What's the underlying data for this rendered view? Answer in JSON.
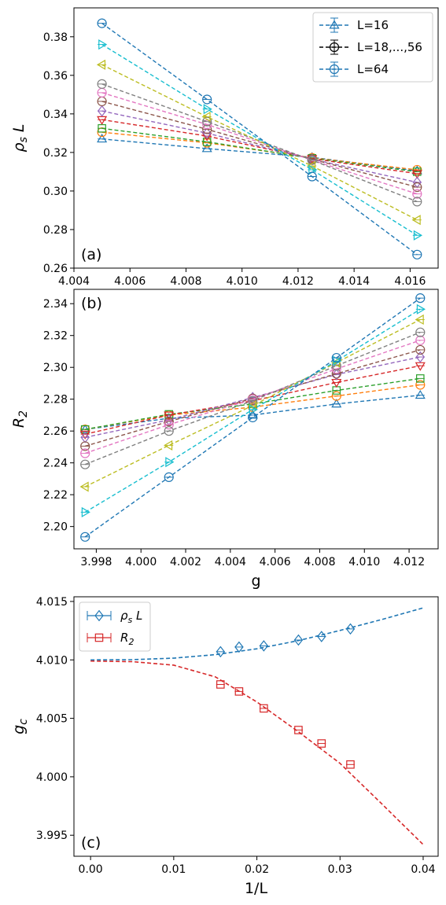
{
  "chart_data": [
    {
      "type": "line",
      "panel_label": "(a)",
      "xlabel": "",
      "ylabel": "ρ_s L",
      "xlim": [
        4.004,
        4.017
      ],
      "ylim": [
        0.26,
        0.395
      ],
      "xticks": [
        4.004,
        4.006,
        4.008,
        4.01,
        4.012,
        4.014,
        4.016
      ],
      "xtick_labels": [
        "4.004",
        "4.006",
        "4.008",
        "4.010",
        "4.012",
        "4.014",
        "4.016"
      ],
      "yticks": [
        0.26,
        0.28,
        0.3,
        0.32,
        0.34,
        0.36,
        0.38
      ],
      "ytick_labels": [
        "0.26",
        "0.28",
        "0.30",
        "0.32",
        "0.34",
        "0.36",
        "0.38"
      ],
      "legend_position": "top-right",
      "legend": [
        {
          "label": "L=16",
          "color": "#1f77b4",
          "marker": "triangle-up"
        },
        {
          "label": "L=18,...,56",
          "color": "#000000",
          "marker": "circle"
        },
        {
          "label": "L=64",
          "color": "#1f77b4",
          "marker": "circle"
        }
      ],
      "x": [
        4.005,
        4.00875,
        4.0125,
        4.01625
      ],
      "series": [
        {
          "color": "#1f77b4",
          "marker": "triangle-up",
          "values": [
            0.327,
            0.322,
            0.3175,
            0.3105
          ]
        },
        {
          "color": "#ff7f0e",
          "marker": "circle",
          "values": [
            0.3305,
            0.325,
            0.3172,
            0.311
          ]
        },
        {
          "color": "#2ca02c",
          "marker": "square",
          "values": [
            0.3325,
            0.3255,
            0.317,
            0.31
          ]
        },
        {
          "color": "#d62728",
          "marker": "triangle-down",
          "values": [
            0.337,
            0.3285,
            0.3168,
            0.309
          ]
        },
        {
          "color": "#9467bd",
          "marker": "diamond",
          "values": [
            0.3415,
            0.33,
            0.3165,
            0.3045
          ]
        },
        {
          "color": "#8c564b",
          "marker": "circle",
          "values": [
            0.3465,
            0.332,
            0.3165,
            0.302
          ]
        },
        {
          "color": "#e377c2",
          "marker": "circle",
          "values": [
            0.351,
            0.3345,
            0.316,
            0.2985
          ]
        },
        {
          "color": "#7f7f7f",
          "marker": "circle",
          "values": [
            0.3555,
            0.336,
            0.316,
            0.2945
          ]
        },
        {
          "color": "#bcbd22",
          "marker": "triangle-left",
          "values": [
            0.3655,
            0.3385,
            0.313,
            0.285
          ]
        },
        {
          "color": "#17becf",
          "marker": "triangle-right",
          "values": [
            0.376,
            0.3425,
            0.311,
            0.277
          ]
        },
        {
          "color": "#1f77b4",
          "marker": "circle",
          "values": [
            0.387,
            0.3475,
            0.3075,
            0.267
          ]
        }
      ]
    },
    {
      "type": "line",
      "panel_label": "(b)",
      "xlabel": "g",
      "ylabel": "R_2",
      "xlim": [
        3.997,
        4.0133
      ],
      "ylim": [
        2.186,
        2.349
      ],
      "xticks": [
        3.998,
        4.0,
        4.002,
        4.004,
        4.006,
        4.008,
        4.01,
        4.012
      ],
      "xtick_labels": [
        "3.998",
        "4.000",
        "4.002",
        "4.004",
        "4.006",
        "4.008",
        "4.010",
        "4.012"
      ],
      "yticks": [
        2.2,
        2.22,
        2.24,
        2.26,
        2.28,
        2.3,
        2.32,
        2.34
      ],
      "ytick_labels": [
        "2.20",
        "2.22",
        "2.24",
        "2.26",
        "2.28",
        "2.30",
        "2.32",
        "2.34"
      ],
      "x": [
        3.9975,
        4.00125,
        4.005,
        4.00875,
        4.0125
      ],
      "series": [
        {
          "color": "#1f77b4",
          "marker": "triangle-up",
          "values": [
            2.261,
            2.268,
            2.27,
            2.277,
            2.2825
          ]
        },
        {
          "color": "#ff7f0e",
          "marker": "circle",
          "values": [
            2.261,
            2.27,
            2.275,
            2.282,
            2.289
          ]
        },
        {
          "color": "#2ca02c",
          "marker": "square",
          "values": [
            2.261,
            2.2705,
            2.277,
            2.2855,
            2.293
          ]
        },
        {
          "color": "#d62728",
          "marker": "triangle-down",
          "values": [
            2.258,
            2.27,
            2.279,
            2.2905,
            2.301
          ]
        },
        {
          "color": "#9467bd",
          "marker": "diamond",
          "values": [
            2.256,
            2.267,
            2.281,
            2.2955,
            2.3065
          ]
        },
        {
          "color": "#8c564b",
          "marker": "circle",
          "values": [
            2.2505,
            2.266,
            2.2805,
            2.296,
            2.311
          ]
        },
        {
          "color": "#e377c2",
          "marker": "circle",
          "values": [
            2.246,
            2.264,
            2.28,
            2.299,
            2.317
          ]
        },
        {
          "color": "#7f7f7f",
          "marker": "circle",
          "values": [
            2.239,
            2.26,
            2.279,
            2.301,
            2.322
          ]
        },
        {
          "color": "#bcbd22",
          "marker": "triangle-left",
          "values": [
            2.225,
            2.251,
            2.276,
            2.303,
            2.33
          ]
        },
        {
          "color": "#17becf",
          "marker": "triangle-right",
          "values": [
            2.209,
            2.2405,
            2.2735,
            2.304,
            2.3365
          ]
        },
        {
          "color": "#1f77b4",
          "marker": "circle",
          "values": [
            2.1935,
            2.231,
            2.2685,
            2.306,
            2.3435
          ]
        }
      ]
    },
    {
      "type": "scatter",
      "panel_label": "(c)",
      "xlabel": "1/L",
      "ylabel": "g_c",
      "xlim": [
        -0.002,
        0.0418
      ],
      "ylim": [
        3.9932,
        4.0154
      ],
      "xticks": [
        0.0,
        0.01,
        0.02,
        0.03,
        0.04
      ],
      "xtick_labels": [
        "0.00",
        "0.01",
        "0.02",
        "0.03",
        "0.04"
      ],
      "yticks": [
        3.995,
        4.0,
        4.005,
        4.01,
        4.015
      ],
      "ytick_labels": [
        "3.995",
        "4.000",
        "4.005",
        "4.010",
        "4.015"
      ],
      "legend_position": "top-left",
      "series": [
        {
          "name": "ρ_s L",
          "color": "#1f77b4",
          "marker": "diamond",
          "x": [
            0.015625,
            0.017857,
            0.020833,
            0.025,
            0.027778,
            0.03125
          ],
          "values": [
            4.0107,
            4.0111,
            4.0112,
            4.0117,
            4.012,
            4.01265
          ],
          "fit": {
            "x": [
              0.0,
              0.005,
              0.01,
              0.015,
              0.02,
              0.025,
              0.03,
              0.035,
              0.04
            ],
            "values": [
              4.01,
              4.01002,
              4.01015,
              4.01045,
              4.01095,
              4.01165,
              4.01252,
              4.01345,
              4.01445
            ]
          }
        },
        {
          "name": "R_2",
          "color": "#d62728",
          "marker": "square",
          "x": [
            0.015625,
            0.017857,
            0.020833,
            0.025,
            0.027778,
            0.03125
          ],
          "values": [
            4.0079,
            4.0073,
            4.00585,
            4.004,
            4.00285,
            4.00105
          ],
          "fit": {
            "x": [
              0.0,
              0.005,
              0.01,
              0.015,
              0.02,
              0.025,
              0.03,
              0.035,
              0.04
            ],
            "values": [
              4.0099,
              4.00985,
              4.00955,
              4.00855,
              4.0064,
              4.00385,
              4.00115,
              3.9977,
              3.9942
            ]
          }
        }
      ]
    }
  ]
}
